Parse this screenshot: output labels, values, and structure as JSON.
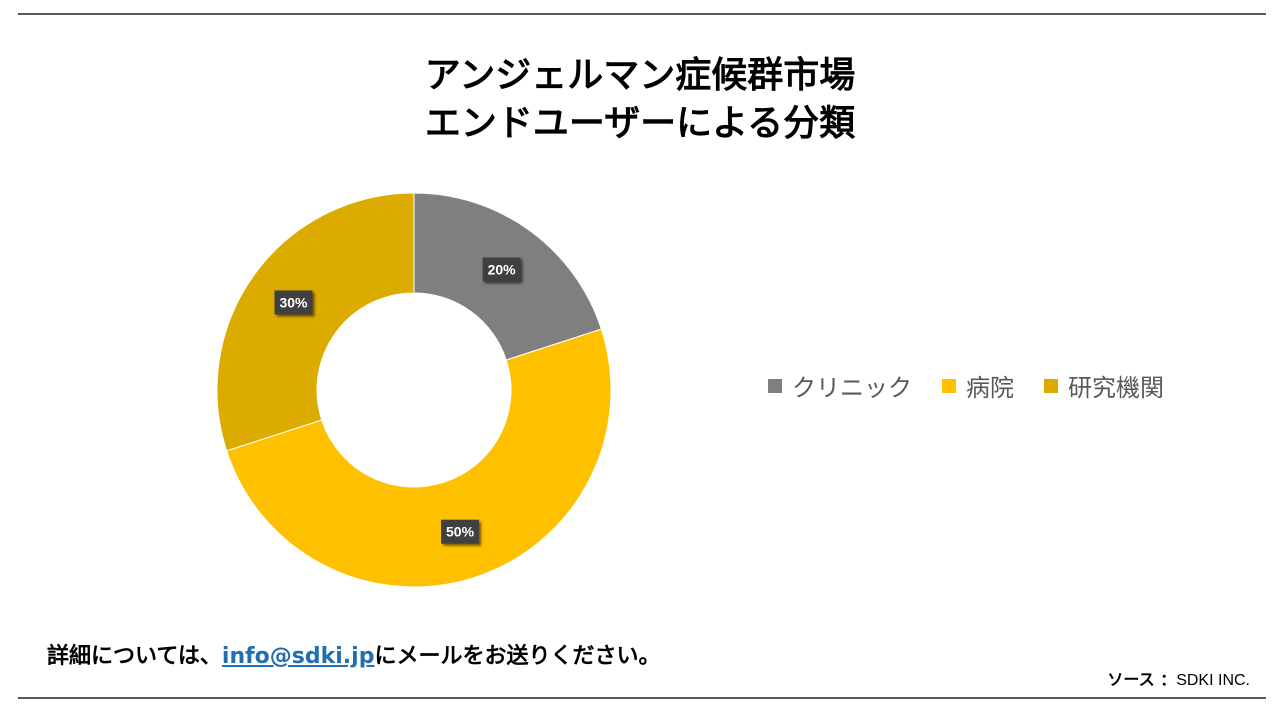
{
  "title": {
    "line1": "アンジェルマン症候群市場",
    "line2": "エンドユーザーによる分類"
  },
  "chart_data": {
    "type": "pie",
    "style": "donut",
    "categories": [
      "クリニック",
      "病院",
      "研究機関"
    ],
    "values": [
      20,
      50,
      30
    ],
    "labels": [
      "20%",
      "50%",
      "30%"
    ],
    "colors": [
      "#7f7f7f",
      "#ffc000",
      "#dcab00"
    ],
    "legend_position": "right"
  },
  "legend": {
    "items": [
      {
        "label": "クリニック",
        "color": "#7f7f7f"
      },
      {
        "label": "病院",
        "color": "#ffc000"
      },
      {
        "label": "研究機関",
        "color": "#dcab00"
      }
    ]
  },
  "footer": {
    "prefix": "詳細については、",
    "email": "info@sdki.jp",
    "suffix": "にメールをお送りください。"
  },
  "source": {
    "label": "ソース ：",
    "value": "SDKI INC."
  }
}
